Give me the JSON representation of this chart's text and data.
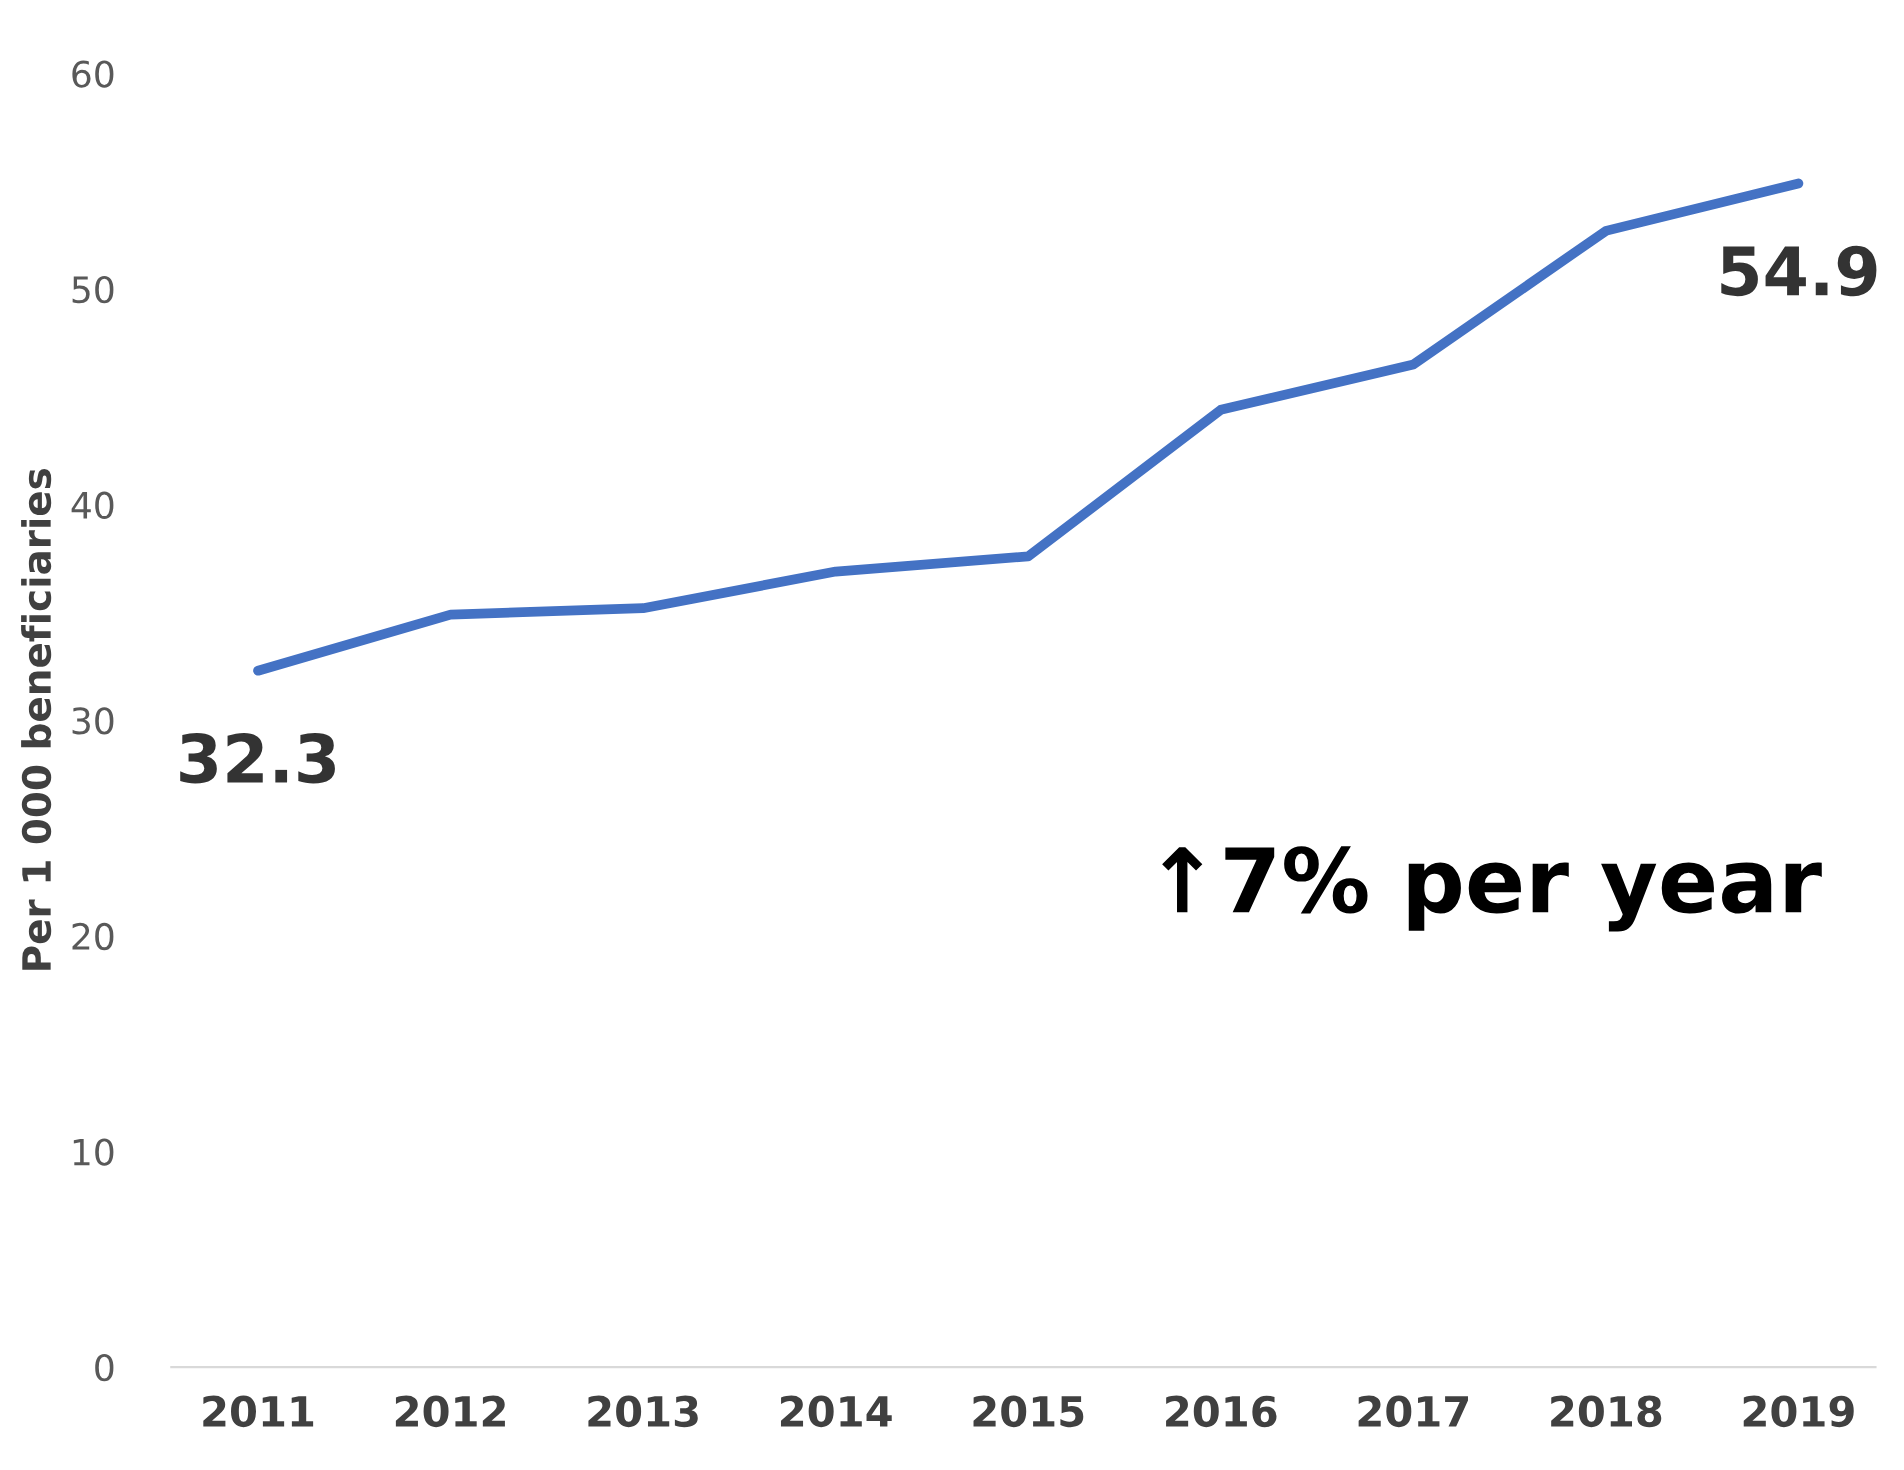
{
  "chart_data": {
    "type": "line",
    "ylabel": "Per 1 000 beneficiaries",
    "categories": [
      "2011",
      "2012",
      "2013",
      "2014",
      "2015",
      "2016",
      "2017",
      "2018",
      "2019"
    ],
    "series": [
      {
        "color": "#4472c4",
        "values": [
          32.3,
          34.9,
          35.2,
          36.9,
          37.6,
          44.4,
          46.5,
          52.7,
          54.9
        ],
        "value_labels": [
          "32.3",
          null,
          null,
          null,
          null,
          null,
          null,
          null,
          "54.9"
        ]
      }
    ],
    "ylim": [
      0,
      60
    ],
    "yticks": [
      0,
      10,
      20,
      30,
      40,
      50,
      60
    ],
    "grid": false,
    "legend": false,
    "marker": "none",
    "line_style": "solid",
    "annotations": [
      "↑7% per year"
    ]
  }
}
